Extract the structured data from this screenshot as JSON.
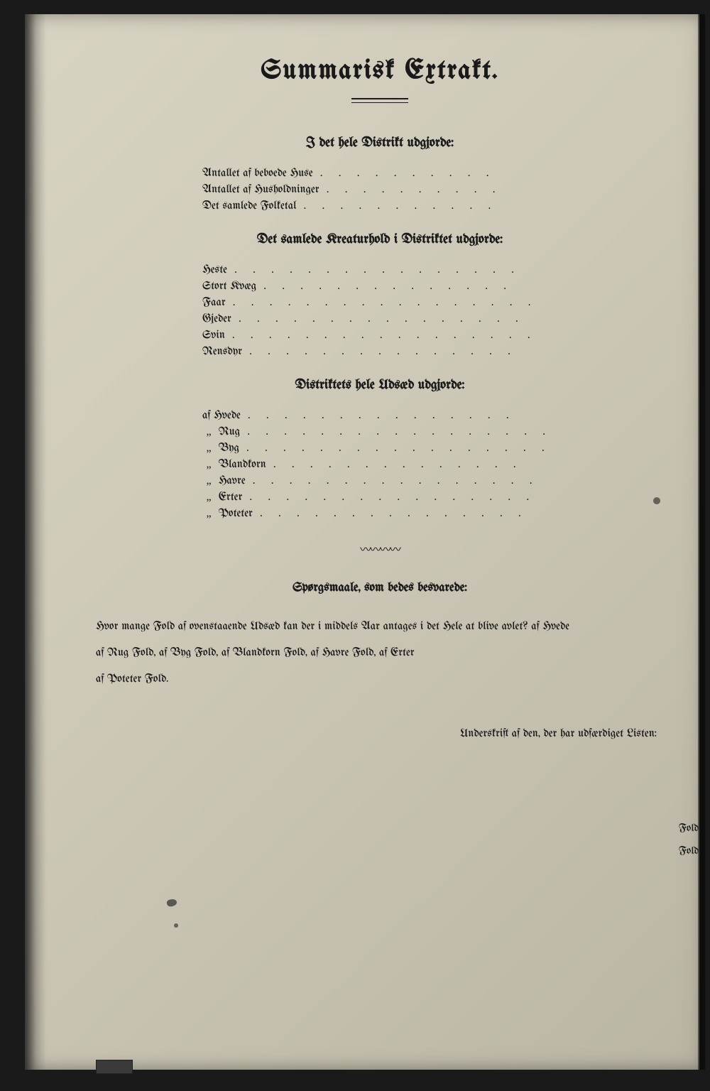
{
  "title": "Summarisk Extrakt.",
  "section1": {
    "heading": "I det hele Distrikt udgjorde:",
    "items": [
      "Antallet af beboede Huse",
      "Antallet af Husholdninger",
      "Det samlede Folketal"
    ]
  },
  "section2": {
    "heading": "Det samlede Kreaturhold i Distriktet udgjorde:",
    "items": [
      "Heste",
      "Stort Kvæg",
      "Faar",
      "Gjeder",
      "Svin",
      "Rensdyr"
    ]
  },
  "section3": {
    "heading": "Distriktets hele Udsæd udgjorde:",
    "lead": "af",
    "first": "Hvede",
    "rest": [
      "Rug",
      "Byg",
      "Blandkorn",
      "Havre",
      "Erter",
      "Poteter"
    ]
  },
  "questions": {
    "heading": "Spørgsmaale, som bedes besvarede:",
    "line1_a": "Hvor mange Fold af ovenstaaende Udsæd kan der i middels Aar antages i det Hele at blive avlet?   af Hvede",
    "line1_end": "Fold,",
    "line2": "af Rug            Fold, af Byg               Fold, af Blandkorn            Fold, af Havre            Fold, af Erter",
    "line2_end": "Fold,",
    "line3": "af Poteter           Fold."
  },
  "signature": "Underskrift af den, der har udfærdiget Listen:",
  "colors": {
    "ink": "#1a1a1a",
    "paper_light": "#d8d4c4",
    "paper_dark": "#bab5a4",
    "frame": "#1a1a1a"
  }
}
